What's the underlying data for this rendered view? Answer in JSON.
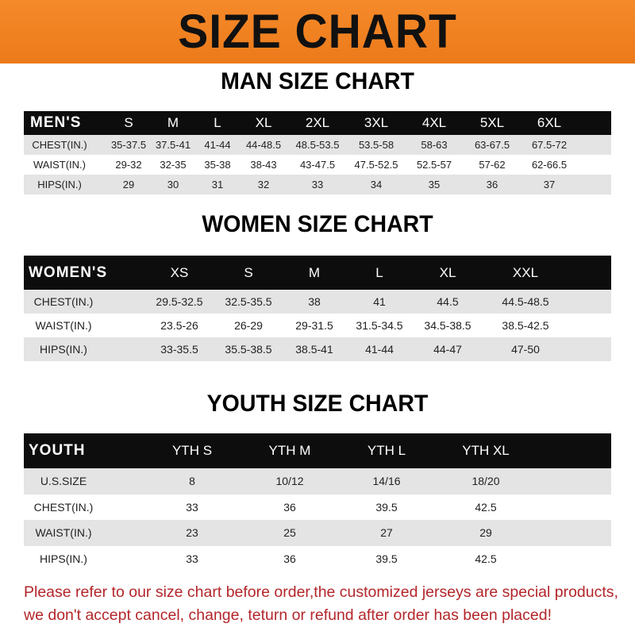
{
  "title": "SIZE CHART",
  "men": {
    "heading": "MAN SIZE CHART",
    "header": [
      "MEN'S",
      "S",
      "M",
      "L",
      "XL",
      "2XL",
      "3XL",
      "4XL",
      "5XL",
      "6XL"
    ],
    "rows": [
      [
        "CHEST(IN.)",
        "35-37.5",
        "37.5-41",
        "41-44",
        "44-48.5",
        "48.5-53.5",
        "53.5-58",
        "58-63",
        "63-67.5",
        "67.5-72"
      ],
      [
        "WAIST(IN.)",
        "29-32",
        "32-35",
        "35-38",
        "38-43",
        "43-47.5",
        "47.5-52.5",
        "52.5-57",
        "57-62",
        "62-66.5"
      ],
      [
        "HIPS(IN.)",
        "29",
        "30",
        "31",
        "32",
        "33",
        "34",
        "35",
        "36",
        "37"
      ]
    ]
  },
  "women": {
    "heading": "WOMEN SIZE CHART",
    "header": [
      "WOMEN'S",
      "XS",
      "S",
      "M",
      "L",
      "XL",
      "XXL"
    ],
    "rows": [
      [
        "CHEST(IN.)",
        "29.5-32.5",
        "32.5-35.5",
        "38",
        "41",
        "44.5",
        "44.5-48.5"
      ],
      [
        "WAIST(IN.)",
        "23.5-26",
        "26-29",
        "29-31.5",
        "31.5-34.5",
        "34.5-38.5",
        "38.5-42.5"
      ],
      [
        "HIPS(IN.)",
        "33-35.5",
        "35.5-38.5",
        "38.5-41",
        "41-44",
        "44-47",
        "47-50"
      ]
    ]
  },
  "youth": {
    "heading": "YOUTH SIZE CHART",
    "header": [
      "YOUTH",
      "YTH S",
      "YTH M",
      "YTH L",
      "YTH XL"
    ],
    "rows": [
      [
        "U.S.SIZE",
        "8",
        "10/12",
        "14/16",
        "18/20"
      ],
      [
        "CHEST(IN.)",
        "33",
        "36",
        "39.5",
        "42.5"
      ],
      [
        "WAIST(IN.)",
        "23",
        "25",
        "27",
        "29"
      ],
      [
        "HIPS(IN.)",
        "33",
        "36",
        "39.5",
        "42.5"
      ]
    ]
  },
  "notice": [
    "Please refer to our size chart before order,the customized jerseys are special products,",
    "we don't accept cancel, change, teturn or refund after order has been placed!"
  ],
  "colors": {
    "banner": "#f0801f",
    "header": "#0d0d0d",
    "notice": "#b3262a"
  }
}
